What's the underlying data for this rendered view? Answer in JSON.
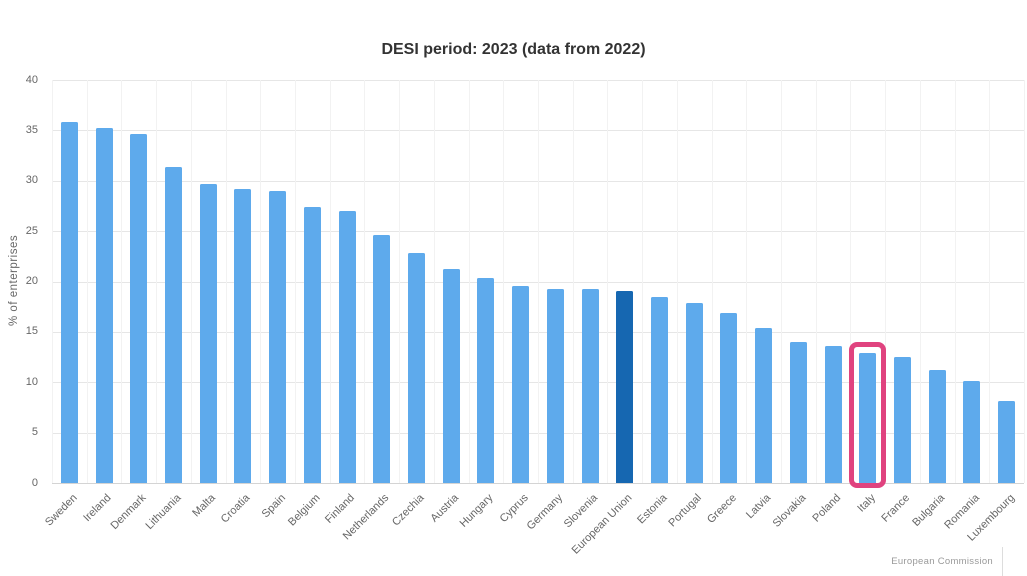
{
  "chart_data": {
    "type": "bar",
    "title": "DESI period: 2023 (data from 2022)",
    "xlabel": "",
    "ylabel": "% of enterprises",
    "ylim": [
      0,
      40
    ],
    "ytick_step": 5,
    "grid": true,
    "legend": "none",
    "categories": [
      "Sweden",
      "Ireland",
      "Denmark",
      "Lithuania",
      "Malta",
      "Croatia",
      "Spain",
      "Belgium",
      "Finland",
      "Netherlands",
      "Czechia",
      "Austria",
      "Hungary",
      "Cyprus",
      "Germany",
      "Slovenia",
      "European Union",
      "Estonia",
      "Portugal",
      "Greece",
      "Latvia",
      "Slovakia",
      "Poland",
      "Italy",
      "France",
      "Bulgaria",
      "Romania",
      "Luxembourg"
    ],
    "values": [
      35.8,
      35.2,
      34.6,
      31.4,
      29.7,
      29.2,
      29.0,
      27.4,
      27.0,
      24.6,
      22.8,
      21.2,
      20.3,
      19.6,
      19.3,
      19.3,
      19.1,
      18.5,
      17.9,
      16.9,
      15.4,
      14.0,
      13.6,
      12.9,
      12.5,
      11.2,
      10.1,
      8.1
    ],
    "emphasized_dark_category": "European Union",
    "outlined_category": "Italy"
  },
  "colors": {
    "bar": "#5EAAEC",
    "eu_bar": "#1667B1",
    "highlight_outline": "#E0437F",
    "title_text": "#333333",
    "axis_text": "#666666",
    "gridline": "#E6E6E6",
    "background": "#FFFFFF"
  },
  "credits": {
    "text": "European Commission"
  }
}
